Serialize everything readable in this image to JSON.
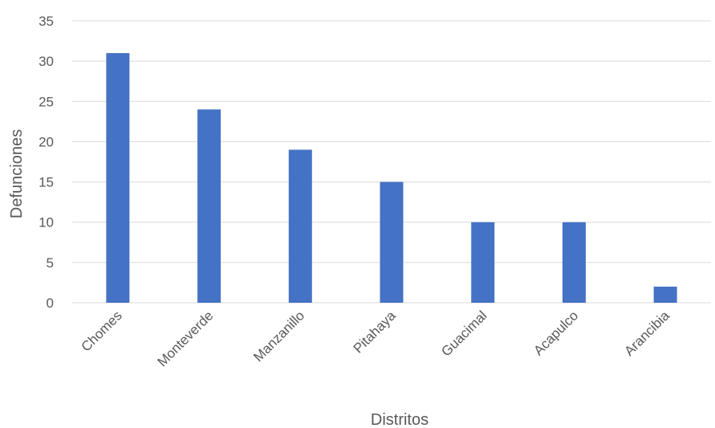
{
  "chart_data": {
    "type": "bar",
    "categories": [
      "Chomes",
      "Monteverde",
      "Manzanillo",
      "Pitahaya",
      "Guacimal",
      "Acapulco",
      "Arancibia"
    ],
    "values": [
      31,
      24,
      19,
      15,
      10,
      10,
      2
    ],
    "title": "",
    "xlabel": "Distritos",
    "ylabel": "Defunciones",
    "ylim": [
      0,
      35
    ],
    "yticks": [
      0,
      5,
      10,
      15,
      20,
      25,
      30,
      35
    ],
    "grid": true,
    "legend": "none",
    "bar_color": "#4472C4"
  }
}
